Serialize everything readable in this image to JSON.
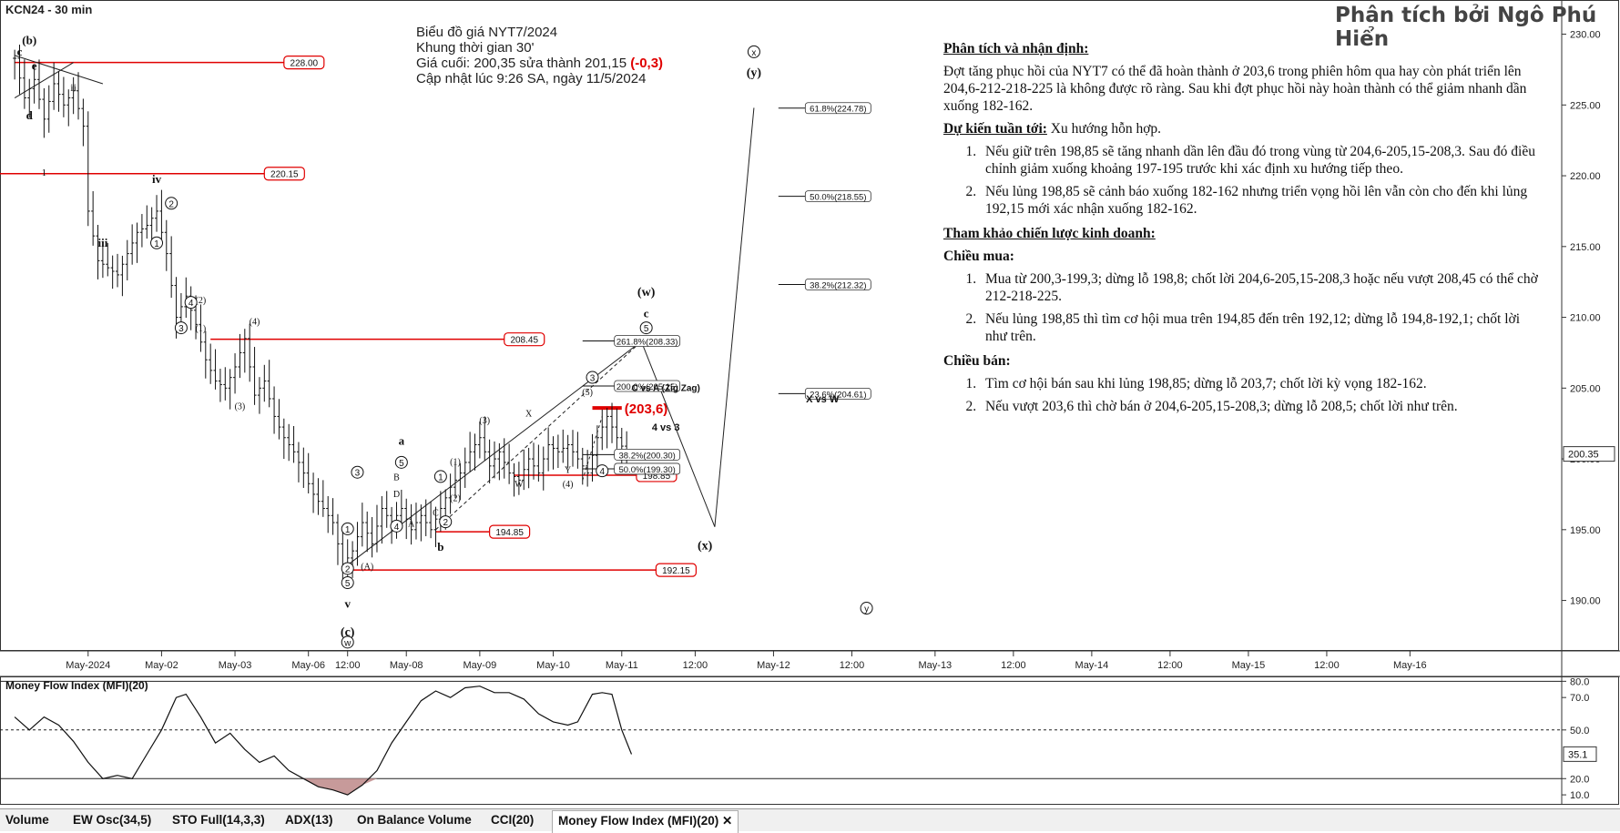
{
  "symbol_title": "KCN24 - 30 min",
  "author": "Phân tích bởi Ngô Phú Hiển",
  "info": {
    "line1": "Biểu đồ giá NYT7/2024",
    "line2": "Khung thời gian 30'",
    "line3_prefix": "Giá cuối: 200,35 sửa thành 201,15 ",
    "line3_change": "(-0,3)",
    "line4": "Cập nhật lúc 9:26 SA, ngày 11/5/2024"
  },
  "analysis": {
    "heading1": "Phân tích và nhận định:",
    "para1": "Đợt tăng phục hồi của NYT7 có thể đã hoàn thành ở 203,6 trong phiên hôm qua hay còn phát triển lên 204,6-212-218-225 là không được rõ ràng. Sau khi đợt phục hồi này hoàn thành có thể giảm nhanh dần xuống 182-162.",
    "heading2_label": "Dự kiến tuần tới:",
    "heading2_value": " Xu hướng hỗn hợp.",
    "forecast": [
      "Nếu giữ trên 198,85 sẽ tăng nhanh dần lên đầu đó trong vùng từ 204,6-205,15-208,3. Sau đó điều chỉnh giảm xuống khoảng 197-195 trước khi xác định xu hướng tiếp theo.",
      "Nếu lủng 198,85 sẽ cảnh báo xuống 182-162 nhưng triển vọng hồi lên vẫn còn cho đến khi lủng 192,15 mới xác nhận xuống 182-162."
    ],
    "heading3": "Tham khảo chiến lược kinh doanh:",
    "buy_heading": "Chiều mua:",
    "buy": [
      "Mua từ 200,3-199,3; dừng lỗ 198,8; chốt lời 204,6-205,15-208,3 hoặc nếu vượt 208,45 có thể chờ 212-218-225.",
      "Nếu lủng 198,85 thì tìm cơ hội mua trên 194,85 đến trên 192,12; dừng lỗ 194,8-192,1; chốt lời như trên."
    ],
    "sell_heading": "Chiều bán:",
    "sell": [
      "Tìm cơ hội bán sau khi lủng 198,85; dừng lỗ 203,7; chốt lời kỳ vọng 182-162.",
      "Nếu vượt 203,6 thì chờ bán ở 204,6-205,15-208,3; dừng lỗ 208,5; chốt lời như trên."
    ]
  },
  "chart_data": [
    {
      "type": "bar",
      "subtype": "ohlc-price",
      "y_ticks": [
        "230.00",
        "225.00",
        "220.00",
        "215.00",
        "210.00",
        "205.00",
        "200.00",
        "195.00",
        "190.00"
      ],
      "y_tick_values": [
        230,
        225,
        220,
        215,
        210,
        205,
        200,
        195,
        190
      ],
      "ylim": [
        186.5,
        231
      ],
      "x_ticks": [
        "May-2024",
        "May-02",
        "May-03",
        "May-06",
        "12:00",
        "May-08",
        "May-09",
        "May-10",
        "May-11",
        "12:00",
        "May-12",
        "12:00",
        "May-13",
        "12:00",
        "May-14",
        "12:00",
        "May-15",
        "12:00",
        "May-16"
      ],
      "x_tick_index": [
        15,
        30,
        45,
        60,
        68,
        80,
        95,
        110,
        124,
        139,
        155,
        171,
        188,
        204,
        220,
        236,
        252,
        268,
        285
      ],
      "xlim": [
        -3,
        316
      ],
      "last_price": "200.35",
      "last_value": 200.35,
      "close_series": [
        {
          "i": 0,
          "v": 228.3
        },
        {
          "i": 2,
          "v": 225.5
        },
        {
          "i": 4,
          "v": 226.8
        },
        {
          "i": 6,
          "v": 224.0
        },
        {
          "i": 8,
          "v": 226.5
        },
        {
          "i": 10,
          "v": 225.0
        },
        {
          "i": 12,
          "v": 226.0
        },
        {
          "i": 14,
          "v": 223.5
        },
        {
          "i": 15,
          "v": 217.5
        },
        {
          "i": 17,
          "v": 214.0
        },
        {
          "i": 19,
          "v": 213.5
        },
        {
          "i": 21,
          "v": 213.0
        },
        {
          "i": 23,
          "v": 214.5
        },
        {
          "i": 25,
          "v": 216.0
        },
        {
          "i": 27,
          "v": 216.5
        },
        {
          "i": 29,
          "v": 217.5
        },
        {
          "i": 31,
          "v": 214.5
        },
        {
          "i": 33,
          "v": 210.0
        },
        {
          "i": 35,
          "v": 211.5
        },
        {
          "i": 37,
          "v": 209.5
        },
        {
          "i": 39,
          "v": 207.0
        },
        {
          "i": 41,
          "v": 205.5
        },
        {
          "i": 43,
          "v": 205.0
        },
        {
          "i": 45,
          "v": 206.5
        },
        {
          "i": 47,
          "v": 208.5
        },
        {
          "i": 49,
          "v": 204.5
        },
        {
          "i": 51,
          "v": 205.5
        },
        {
          "i": 53,
          "v": 203.0
        },
        {
          "i": 55,
          "v": 201.5
        },
        {
          "i": 57,
          "v": 200.5
        },
        {
          "i": 59,
          "v": 199.0
        },
        {
          "i": 61,
          "v": 197.5
        },
        {
          "i": 63,
          "v": 196.5
        },
        {
          "i": 65,
          "v": 195.5
        },
        {
          "i": 67,
          "v": 192.5
        },
        {
          "i": 69,
          "v": 193.5
        },
        {
          "i": 71,
          "v": 195.5
        },
        {
          "i": 73,
          "v": 194.0
        },
        {
          "i": 75,
          "v": 196.5
        },
        {
          "i": 77,
          "v": 195.5
        },
        {
          "i": 79,
          "v": 196.5
        },
        {
          "i": 81,
          "v": 195.0
        },
        {
          "i": 83,
          "v": 196.0
        },
        {
          "i": 85,
          "v": 195.0
        },
        {
          "i": 87,
          "v": 196.5
        },
        {
          "i": 89,
          "v": 198.0
        },
        {
          "i": 91,
          "v": 199.0
        },
        {
          "i": 93,
          "v": 200.5
        },
        {
          "i": 95,
          "v": 201.5
        },
        {
          "i": 97,
          "v": 199.5
        },
        {
          "i": 99,
          "v": 200.5
        },
        {
          "i": 101,
          "v": 199.0
        },
        {
          "i": 103,
          "v": 198.5
        },
        {
          "i": 105,
          "v": 200.0
        },
        {
          "i": 107,
          "v": 199.0
        },
        {
          "i": 109,
          "v": 201.0
        },
        {
          "i": 111,
          "v": 200.5
        },
        {
          "i": 113,
          "v": 201.0
        },
        {
          "i": 115,
          "v": 200.0
        },
        {
          "i": 117,
          "v": 199.0
        },
        {
          "i": 119,
          "v": 201.5
        },
        {
          "i": 121,
          "v": 203.0
        },
        {
          "i": 123,
          "v": 201.5
        },
        {
          "i": 125,
          "v": 200.3
        }
      ],
      "horizontal_levels": [
        {
          "label": "228.00",
          "value": 228.0
        },
        {
          "label": "220.15",
          "value": 220.15
        },
        {
          "label": "208.45",
          "value": 208.45
        },
        {
          "label": "198.85",
          "value": 198.85
        },
        {
          "label": "194.85",
          "value": 194.85
        },
        {
          "label": "192.15",
          "value": 192.15
        }
      ],
      "fibonacci_levels": [
        {
          "label": "61.8%(224.78)",
          "value": 224.78
        },
        {
          "label": "50.0%(218.55)",
          "value": 218.55
        },
        {
          "label": "38.2%(212.32)",
          "value": 212.32
        },
        {
          "label": "23.6%(204.61)",
          "value": 204.61
        },
        {
          "label": "261.8%(208.33)",
          "value": 208.33
        },
        {
          "label": "200.0%(205.15)",
          "value": 205.15
        },
        {
          "label": "38.2%(200.30)",
          "value": 200.3
        },
        {
          "label": "50.0%(199.30)",
          "value": 199.3
        }
      ],
      "annotations": {
        "peak": "(203,6)",
        "c_vs_a": "C vs A (Zig Zag)",
        "four_vs_three": "4 vs 3",
        "x_vs_w": "X vs W",
        "wave_labels": [
          "(b)",
          "c",
          "e",
          "ii",
          "d",
          "1",
          "iv",
          "iii",
          "(4)",
          "(3)",
          "(2)",
          "(1)",
          "a",
          "b",
          "v",
          "(c)",
          "(w)",
          "(x)",
          "(y)",
          "x",
          "y",
          "X",
          "Y",
          "W",
          "(A)",
          "A",
          "B",
          "C",
          "D"
        ],
        "circled_labels": [
          "2",
          "1",
          "4",
          "2",
          "3",
          "1",
          "4",
          "5",
          "3",
          "5",
          "1",
          "2",
          "4",
          "5",
          "x",
          "y",
          "w"
        ]
      }
    },
    {
      "type": "line",
      "title": "Money Flow Index (MFI)(20)",
      "y_ticks": [
        "80.0",
        "70.0",
        "50.0",
        "20.0",
        "10.0"
      ],
      "y_tick_values": [
        80,
        70,
        50,
        20,
        10
      ],
      "ylim": [
        5,
        83
      ],
      "last_value_label": "35.1",
      "last_value": 35.1,
      "overbought": 80,
      "midline": 50,
      "oversold": 20,
      "values": [
        {
          "i": 0,
          "v": 58
        },
        {
          "i": 3,
          "v": 50
        },
        {
          "i": 6,
          "v": 58
        },
        {
          "i": 9,
          "v": 53
        },
        {
          "i": 12,
          "v": 43
        },
        {
          "i": 15,
          "v": 30
        },
        {
          "i": 18,
          "v": 20
        },
        {
          "i": 21,
          "v": 22
        },
        {
          "i": 24,
          "v": 20
        },
        {
          "i": 27,
          "v": 35
        },
        {
          "i": 30,
          "v": 50
        },
        {
          "i": 33,
          "v": 70
        },
        {
          "i": 35,
          "v": 72
        },
        {
          "i": 38,
          "v": 58
        },
        {
          "i": 41,
          "v": 42
        },
        {
          "i": 44,
          "v": 48
        },
        {
          "i": 47,
          "v": 38
        },
        {
          "i": 50,
          "v": 30
        },
        {
          "i": 53,
          "v": 34
        },
        {
          "i": 56,
          "v": 25
        },
        {
          "i": 59,
          "v": 20
        },
        {
          "i": 62,
          "v": 15
        },
        {
          "i": 65,
          "v": 13
        },
        {
          "i": 68,
          "v": 10
        },
        {
          "i": 71,
          "v": 16
        },
        {
          "i": 74,
          "v": 25
        },
        {
          "i": 77,
          "v": 42
        },
        {
          "i": 80,
          "v": 55
        },
        {
          "i": 83,
          "v": 68
        },
        {
          "i": 86,
          "v": 74
        },
        {
          "i": 89,
          "v": 70
        },
        {
          "i": 92,
          "v": 76
        },
        {
          "i": 95,
          "v": 77
        },
        {
          "i": 98,
          "v": 73
        },
        {
          "i": 101,
          "v": 73
        },
        {
          "i": 104,
          "v": 69
        },
        {
          "i": 107,
          "v": 60
        },
        {
          "i": 110,
          "v": 55
        },
        {
          "i": 113,
          "v": 53
        },
        {
          "i": 115,
          "v": 55
        },
        {
          "i": 118,
          "v": 72
        },
        {
          "i": 120,
          "v": 73
        },
        {
          "i": 122,
          "v": 72
        },
        {
          "i": 124,
          "v": 50
        },
        {
          "i": 126,
          "v": 35
        }
      ]
    }
  ],
  "tabs": [
    {
      "label": "Volume"
    },
    {
      "label": "EW Osc(34,5)"
    },
    {
      "label": "STO Full(14,3,3)"
    },
    {
      "label": "ADX(13)"
    },
    {
      "label": "On Balance Volume"
    },
    {
      "label": "CCI(20)"
    },
    {
      "label": "Money Flow Index (MFI)(20)",
      "active": true,
      "close": "✕"
    }
  ]
}
